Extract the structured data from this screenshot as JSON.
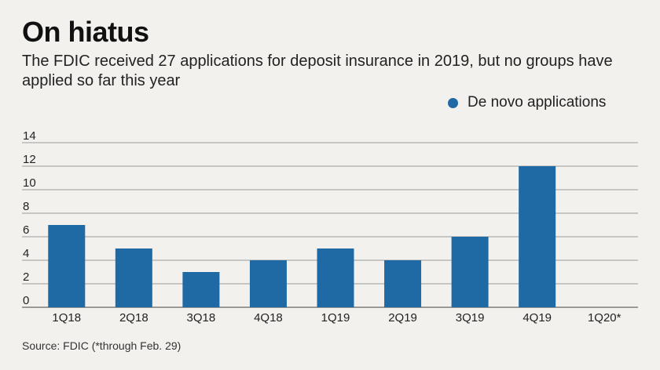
{
  "title": "On hiatus",
  "subtitle": "The FDIC received 27 applications for deposit insurance in 2019, but no groups have applied so far this year",
  "source": "Source: FDIC (*through Feb. 29)",
  "colors": {
    "bar": "#1f6aa5",
    "grid": "#9a9a9a",
    "axis": "#444444"
  },
  "chart_data": {
    "type": "bar",
    "categories": [
      "1Q18",
      "2Q18",
      "3Q18",
      "4Q18",
      "1Q19",
      "2Q19",
      "3Q19",
      "4Q19",
      "1Q20*"
    ],
    "series": [
      {
        "name": "De novo applications",
        "values": [
          7,
          5,
          3,
          4,
          5,
          4,
          6,
          12,
          0
        ]
      }
    ],
    "yticks": [
      0,
      2,
      4,
      6,
      8,
      10,
      12,
      14
    ],
    "ylim": [
      0,
      14
    ],
    "grid": true,
    "legend_position": "top-right"
  }
}
